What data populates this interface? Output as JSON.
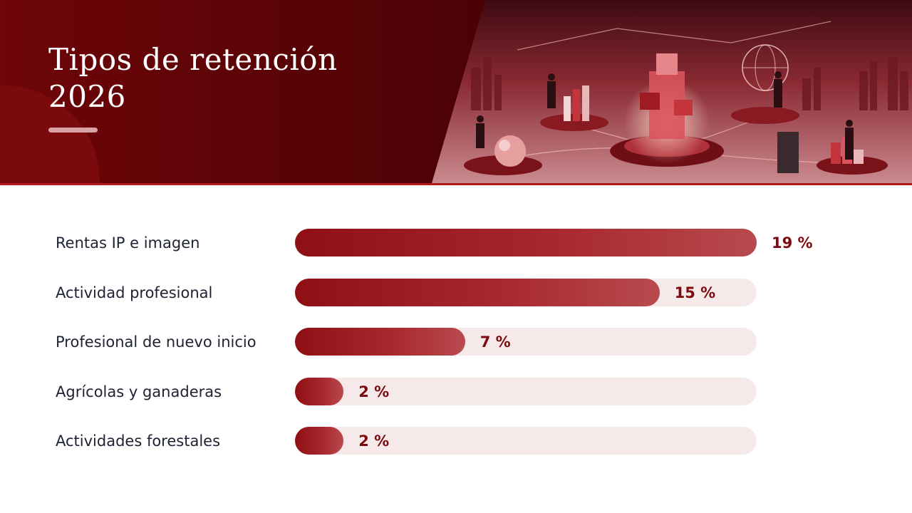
{
  "title_line1": "Tipos de retención",
  "title_line2": "2026",
  "colors": {
    "header": "#5a0307",
    "bar": "#9e1c21",
    "track": "#f6e9ea",
    "value": "#7d0a0e"
  },
  "chart_data": {
    "type": "bar",
    "orientation": "horizontal",
    "categories": [
      "Rentas IP e imagen",
      "Actividad profesional",
      "Profesional de nuevo inicio",
      "Agrícolas y ganaderas",
      "Actividades forestales"
    ],
    "values": [
      19,
      15,
      7,
      2,
      2
    ],
    "value_labels": [
      "19 %",
      "15 %",
      "7 %",
      "2 %",
      "2 %"
    ],
    "xlim": [
      0,
      19
    ],
    "grid": false
  }
}
